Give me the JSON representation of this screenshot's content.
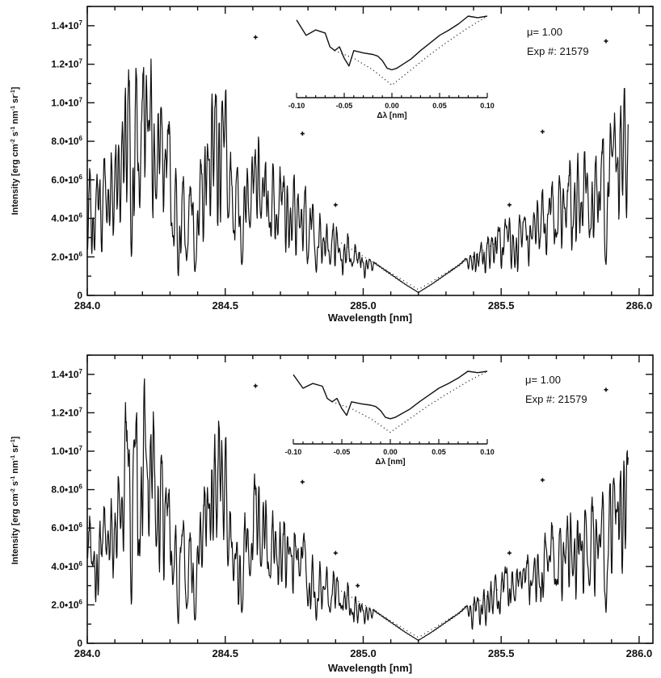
{
  "chart_data": [
    {
      "type": "line",
      "xlabel": "Wavelength [nm]",
      "ylabel": "Intensity [erg cm-2 s-1 nm-1 sr-1]",
      "ylabel_parts": {
        "main": "Intensity [erg cm",
        "e1": "-2",
        "s": " s",
        "e2": "-1",
        "nm": " nm",
        "e3": "-1",
        "sr": " sr",
        "e4": "-1",
        "end": "]"
      },
      "xlim": [
        284.0,
        286.05
      ],
      "ylim": [
        0,
        15000000
      ],
      "xticks": [
        284.0,
        284.5,
        285.0,
        285.5,
        286.0
      ],
      "xtick_labels": [
        "284.0",
        "284.5",
        "285.0",
        "285.5",
        "286.0"
      ],
      "yticks": [
        0,
        2000000,
        4000000,
        6000000,
        8000000,
        10000000,
        12000000,
        14000000
      ],
      "ytick_labels": [
        "0",
        "2.0•10",
        "4.0•10",
        "6.0•10",
        "8.0•10",
        "1.0•10",
        "1.2•10",
        "1.4•10"
      ],
      "ytick_exps": [
        "",
        "6",
        "6",
        "6",
        "6",
        "7",
        "7",
        "7"
      ],
      "annotations": {
        "mu": "μ= 1.00",
        "exp": "Exp #: 21579"
      },
      "markers": [
        {
          "x": 284.61,
          "y": 13400000
        },
        {
          "x": 284.78,
          "y": 8400000
        },
        {
          "x": 284.9,
          "y": 4700000
        },
        {
          "x": 285.53,
          "y": 4700000
        },
        {
          "x": 285.65,
          "y": 8500000
        },
        {
          "x": 285.88,
          "y": 13200000
        }
      ],
      "anchors": [
        [
          284.0,
          7.0
        ],
        [
          284.03,
          6.0
        ],
        [
          284.06,
          6.8
        ],
        [
          284.1,
          7.5
        ],
        [
          284.15,
          13.0
        ],
        [
          284.2,
          14.0
        ],
        [
          284.25,
          11.5
        ],
        [
          284.3,
          9.0
        ],
        [
          284.35,
          6.3
        ],
        [
          284.4,
          5.8
        ],
        [
          284.45,
          11.0
        ],
        [
          284.5,
          11.8
        ],
        [
          284.55,
          6.0
        ],
        [
          284.58,
          6.8
        ],
        [
          284.62,
          9.3
        ],
        [
          284.67,
          6.8
        ],
        [
          284.72,
          6.4
        ],
        [
          284.78,
          6.2
        ],
        [
          284.82,
          4.7
        ],
        [
          284.85,
          4.2
        ],
        [
          284.9,
          3.8
        ],
        [
          284.95,
          3.0
        ],
        [
          285.0,
          2.2
        ],
        [
          285.05,
          1.6
        ],
        [
          285.1,
          1.1
        ],
        [
          285.15,
          0.6
        ],
        [
          285.2,
          0.15
        ],
        [
          285.25,
          0.6
        ],
        [
          285.3,
          1.1
        ],
        [
          285.35,
          1.6
        ],
        [
          285.4,
          2.3
        ],
        [
          285.45,
          3.0
        ],
        [
          285.5,
          3.7
        ],
        [
          285.55,
          4.2
        ],
        [
          285.6,
          4.7
        ],
        [
          285.65,
          5.5
        ],
        [
          285.7,
          6.3
        ],
        [
          285.75,
          7.4
        ],
        [
          285.8,
          7.5
        ],
        [
          285.85,
          7.8
        ],
        [
          285.9,
          8.8
        ],
        [
          285.93,
          11.5
        ],
        [
          285.96,
          10.0
        ]
      ],
      "lines": [
        [
          284.02,
          4.0
        ],
        [
          284.08,
          10.5
        ],
        [
          284.12,
          7.5
        ],
        [
          284.16,
          2.0
        ],
        [
          284.19,
          4.5
        ],
        [
          284.22,
          8.5
        ],
        [
          284.25,
          5.0
        ],
        [
          284.28,
          7.0
        ],
        [
          284.31,
          3.0
        ],
        [
          284.33,
          1.0
        ],
        [
          284.36,
          1.8
        ],
        [
          284.39,
          1.2
        ],
        [
          284.44,
          7.0
        ],
        [
          284.51,
          4.0
        ],
        [
          284.53,
          3.2
        ],
        [
          284.56,
          1.6
        ],
        [
          284.59,
          3.5
        ],
        [
          284.63,
          4.0
        ],
        [
          284.66,
          3.5
        ],
        [
          284.69,
          4.0
        ],
        [
          284.74,
          4.5
        ],
        [
          284.77,
          3.5
        ],
        [
          284.8,
          1.9
        ],
        [
          284.83,
          1.2
        ],
        [
          284.86,
          2.8
        ],
        [
          284.88,
          1.6
        ],
        [
          284.92,
          1.8
        ],
        [
          284.96,
          1.5
        ],
        [
          285.0,
          1.7
        ],
        [
          285.55,
          2.2
        ],
        [
          285.58,
          3.8
        ],
        [
          285.61,
          3.0
        ],
        [
          285.64,
          2.9
        ],
        [
          285.67,
          4.2
        ],
        [
          285.7,
          3.0
        ],
        [
          285.73,
          4.5
        ],
        [
          285.76,
          3.5
        ],
        [
          285.79,
          4.8
        ],
        [
          285.82,
          3.0
        ],
        [
          285.85,
          5.2
        ],
        [
          285.88,
          1.6
        ],
        [
          285.92,
          6.8
        ]
      ],
      "inset": {
        "xlabel": "Δλ [nm]",
        "xlim": [
          -0.1,
          0.1
        ],
        "xticks": [
          -0.1,
          -0.05,
          0.0,
          0.05,
          0.1
        ],
        "xtick_labels": [
          "-0.10",
          "-0.05",
          "0.00",
          "0.05",
          "0.10"
        ],
        "observed": [
          [
            -0.1,
            0.95
          ],
          [
            -0.09,
            0.75
          ],
          [
            -0.08,
            0.82
          ],
          [
            -0.07,
            0.78
          ],
          [
            -0.065,
            0.6
          ],
          [
            -0.06,
            0.55
          ],
          [
            -0.055,
            0.6
          ],
          [
            -0.05,
            0.45
          ],
          [
            -0.045,
            0.35
          ],
          [
            -0.04,
            0.55
          ],
          [
            -0.03,
            0.52
          ],
          [
            -0.02,
            0.5
          ],
          [
            -0.015,
            0.48
          ],
          [
            -0.01,
            0.42
          ],
          [
            -0.005,
            0.32
          ],
          [
            0.0,
            0.3
          ],
          [
            0.005,
            0.32
          ],
          [
            0.01,
            0.36
          ],
          [
            0.02,
            0.44
          ],
          [
            0.03,
            0.55
          ],
          [
            0.04,
            0.65
          ],
          [
            0.05,
            0.75
          ],
          [
            0.06,
            0.82
          ],
          [
            0.07,
            0.9
          ],
          [
            0.08,
            1.0
          ],
          [
            0.09,
            0.98
          ],
          [
            0.1,
            1.0
          ]
        ],
        "model": [
          [
            -0.06,
            0.55
          ],
          [
            -0.04,
            0.45
          ],
          [
            -0.02,
            0.3
          ],
          [
            -0.01,
            0.2
          ],
          [
            0.0,
            0.1
          ],
          [
            0.01,
            0.2
          ],
          [
            0.02,
            0.3
          ],
          [
            0.04,
            0.5
          ],
          [
            0.06,
            0.68
          ],
          [
            0.08,
            0.85
          ],
          [
            0.1,
            1.0
          ]
        ]
      }
    },
    {
      "type": "line",
      "xlabel": "Wavelength [nm]",
      "ylabel": "Intensity [erg cm-2 s-1 nm-1 sr-1]",
      "ylabel_parts": {
        "main": "Intensity [erg cm",
        "e1": "-2",
        "s": " s",
        "e2": "-1",
        "nm": " nm",
        "e3": "-1",
        "sr": " sr",
        "e4": "-1",
        "end": "]"
      },
      "xlim": [
        284.0,
        286.05
      ],
      "ylim": [
        0,
        15000000
      ],
      "xticks": [
        284.0,
        284.5,
        285.0,
        285.5,
        286.0
      ],
      "xtick_labels": [
        "284.0",
        "284.5",
        "285.0",
        "285.5",
        "286.0"
      ],
      "yticks": [
        0,
        2000000,
        4000000,
        6000000,
        8000000,
        10000000,
        12000000,
        14000000
      ],
      "ytick_labels": [
        "0",
        "2.0•10",
        "4.0•10",
        "6.0•10",
        "8.0•10",
        "1.0•10",
        "1.2•10",
        "1.4•10"
      ],
      "ytick_exps": [
        "",
        "6",
        "6",
        "6",
        "6",
        "7",
        "7",
        "7"
      ],
      "annotations": {
        "mu": "μ= 1.00",
        "exp": "Exp #: 21579"
      },
      "markers": [
        {
          "x": 284.61,
          "y": 13400000
        },
        {
          "x": 284.78,
          "y": 8400000
        },
        {
          "x": 284.9,
          "y": 4700000
        },
        {
          "x": 284.98,
          "y": 3000000
        },
        {
          "x": 285.53,
          "y": 4700000
        },
        {
          "x": 285.65,
          "y": 8500000
        },
        {
          "x": 285.88,
          "y": 13200000
        }
      ],
      "anchors": [
        [
          284.0,
          7.0
        ],
        [
          284.03,
          6.0
        ],
        [
          284.06,
          6.8
        ],
        [
          284.1,
          7.5
        ],
        [
          284.15,
          13.0
        ],
        [
          284.2,
          14.0
        ],
        [
          284.25,
          11.5
        ],
        [
          284.3,
          9.0
        ],
        [
          284.35,
          6.3
        ],
        [
          284.4,
          5.8
        ],
        [
          284.45,
          11.0
        ],
        [
          284.5,
          11.8
        ],
        [
          284.55,
          6.0
        ],
        [
          284.58,
          6.8
        ],
        [
          284.62,
          9.3
        ],
        [
          284.67,
          6.8
        ],
        [
          284.72,
          6.4
        ],
        [
          284.78,
          6.2
        ],
        [
          284.82,
          4.7
        ],
        [
          284.85,
          4.2
        ],
        [
          284.9,
          3.8
        ],
        [
          284.95,
          3.0
        ],
        [
          285.0,
          2.2
        ],
        [
          285.05,
          1.6
        ],
        [
          285.1,
          1.1
        ],
        [
          285.15,
          0.6
        ],
        [
          285.2,
          0.15
        ],
        [
          285.25,
          0.6
        ],
        [
          285.3,
          1.1
        ],
        [
          285.35,
          1.6
        ],
        [
          285.4,
          2.3
        ],
        [
          285.45,
          3.0
        ],
        [
          285.5,
          3.7
        ],
        [
          285.55,
          4.2
        ],
        [
          285.6,
          4.7
        ],
        [
          285.65,
          5.5
        ],
        [
          285.7,
          6.3
        ],
        [
          285.75,
          7.4
        ],
        [
          285.8,
          7.5
        ],
        [
          285.85,
          7.8
        ],
        [
          285.9,
          8.8
        ],
        [
          285.93,
          11.5
        ],
        [
          285.96,
          10.0
        ]
      ],
      "lines": [
        [
          284.02,
          4.0
        ],
        [
          284.08,
          10.5
        ],
        [
          284.12,
          7.5
        ],
        [
          284.16,
          2.0
        ],
        [
          284.19,
          4.5
        ],
        [
          284.22,
          8.5
        ],
        [
          284.25,
          5.0
        ],
        [
          284.28,
          7.0
        ],
        [
          284.31,
          3.0
        ],
        [
          284.33,
          1.0
        ],
        [
          284.36,
          1.8
        ],
        [
          284.39,
          1.2
        ],
        [
          284.44,
          7.0
        ],
        [
          284.51,
          4.0
        ],
        [
          284.53,
          3.2
        ],
        [
          284.56,
          1.6
        ],
        [
          284.59,
          3.5
        ],
        [
          284.63,
          4.0
        ],
        [
          284.66,
          3.5
        ],
        [
          284.69,
          4.0
        ],
        [
          284.74,
          4.5
        ],
        [
          284.77,
          3.5
        ],
        [
          284.8,
          1.9
        ],
        [
          284.83,
          1.2
        ],
        [
          284.86,
          2.8
        ],
        [
          284.88,
          1.6
        ],
        [
          284.92,
          1.8
        ],
        [
          284.96,
          1.5
        ],
        [
          285.0,
          1.7
        ],
        [
          285.55,
          2.2
        ],
        [
          285.58,
          3.8
        ],
        [
          285.61,
          3.0
        ],
        [
          285.64,
          2.9
        ],
        [
          285.67,
          4.2
        ],
        [
          285.7,
          3.0
        ],
        [
          285.73,
          4.5
        ],
        [
          285.76,
          3.5
        ],
        [
          285.79,
          4.8
        ],
        [
          285.82,
          3.0
        ],
        [
          285.85,
          5.2
        ],
        [
          285.88,
          1.6
        ],
        [
          285.92,
          6.8
        ]
      ],
      "inset": {
        "xlabel": "Δλ [nm]",
        "xlim": [
          -0.1,
          0.1
        ],
        "xticks": [
          -0.1,
          -0.05,
          0.0,
          0.05,
          0.1
        ],
        "xtick_labels": [
          "-0.10",
          "-0.05",
          "0.00",
          "0.05",
          "0.10"
        ],
        "observed": [
          [
            -0.1,
            0.95
          ],
          [
            -0.09,
            0.75
          ],
          [
            -0.08,
            0.82
          ],
          [
            -0.07,
            0.78
          ],
          [
            -0.065,
            0.6
          ],
          [
            -0.06,
            0.55
          ],
          [
            -0.055,
            0.6
          ],
          [
            -0.05,
            0.45
          ],
          [
            -0.045,
            0.35
          ],
          [
            -0.04,
            0.55
          ],
          [
            -0.03,
            0.52
          ],
          [
            -0.02,
            0.5
          ],
          [
            -0.015,
            0.48
          ],
          [
            -0.01,
            0.42
          ],
          [
            -0.005,
            0.32
          ],
          [
            0.0,
            0.3
          ],
          [
            0.005,
            0.32
          ],
          [
            0.01,
            0.36
          ],
          [
            0.02,
            0.44
          ],
          [
            0.03,
            0.55
          ],
          [
            0.04,
            0.65
          ],
          [
            0.05,
            0.75
          ],
          [
            0.06,
            0.82
          ],
          [
            0.07,
            0.9
          ],
          [
            0.08,
            1.0
          ],
          [
            0.09,
            0.98
          ],
          [
            0.1,
            1.0
          ]
        ],
        "model": [
          [
            -0.06,
            0.55
          ],
          [
            -0.04,
            0.45
          ],
          [
            -0.02,
            0.3
          ],
          [
            -0.01,
            0.2
          ],
          [
            0.0,
            0.1
          ],
          [
            0.01,
            0.2
          ],
          [
            0.02,
            0.3
          ],
          [
            0.04,
            0.5
          ],
          [
            0.06,
            0.68
          ],
          [
            0.08,
            0.85
          ],
          [
            0.1,
            1.0
          ]
        ]
      }
    }
  ]
}
